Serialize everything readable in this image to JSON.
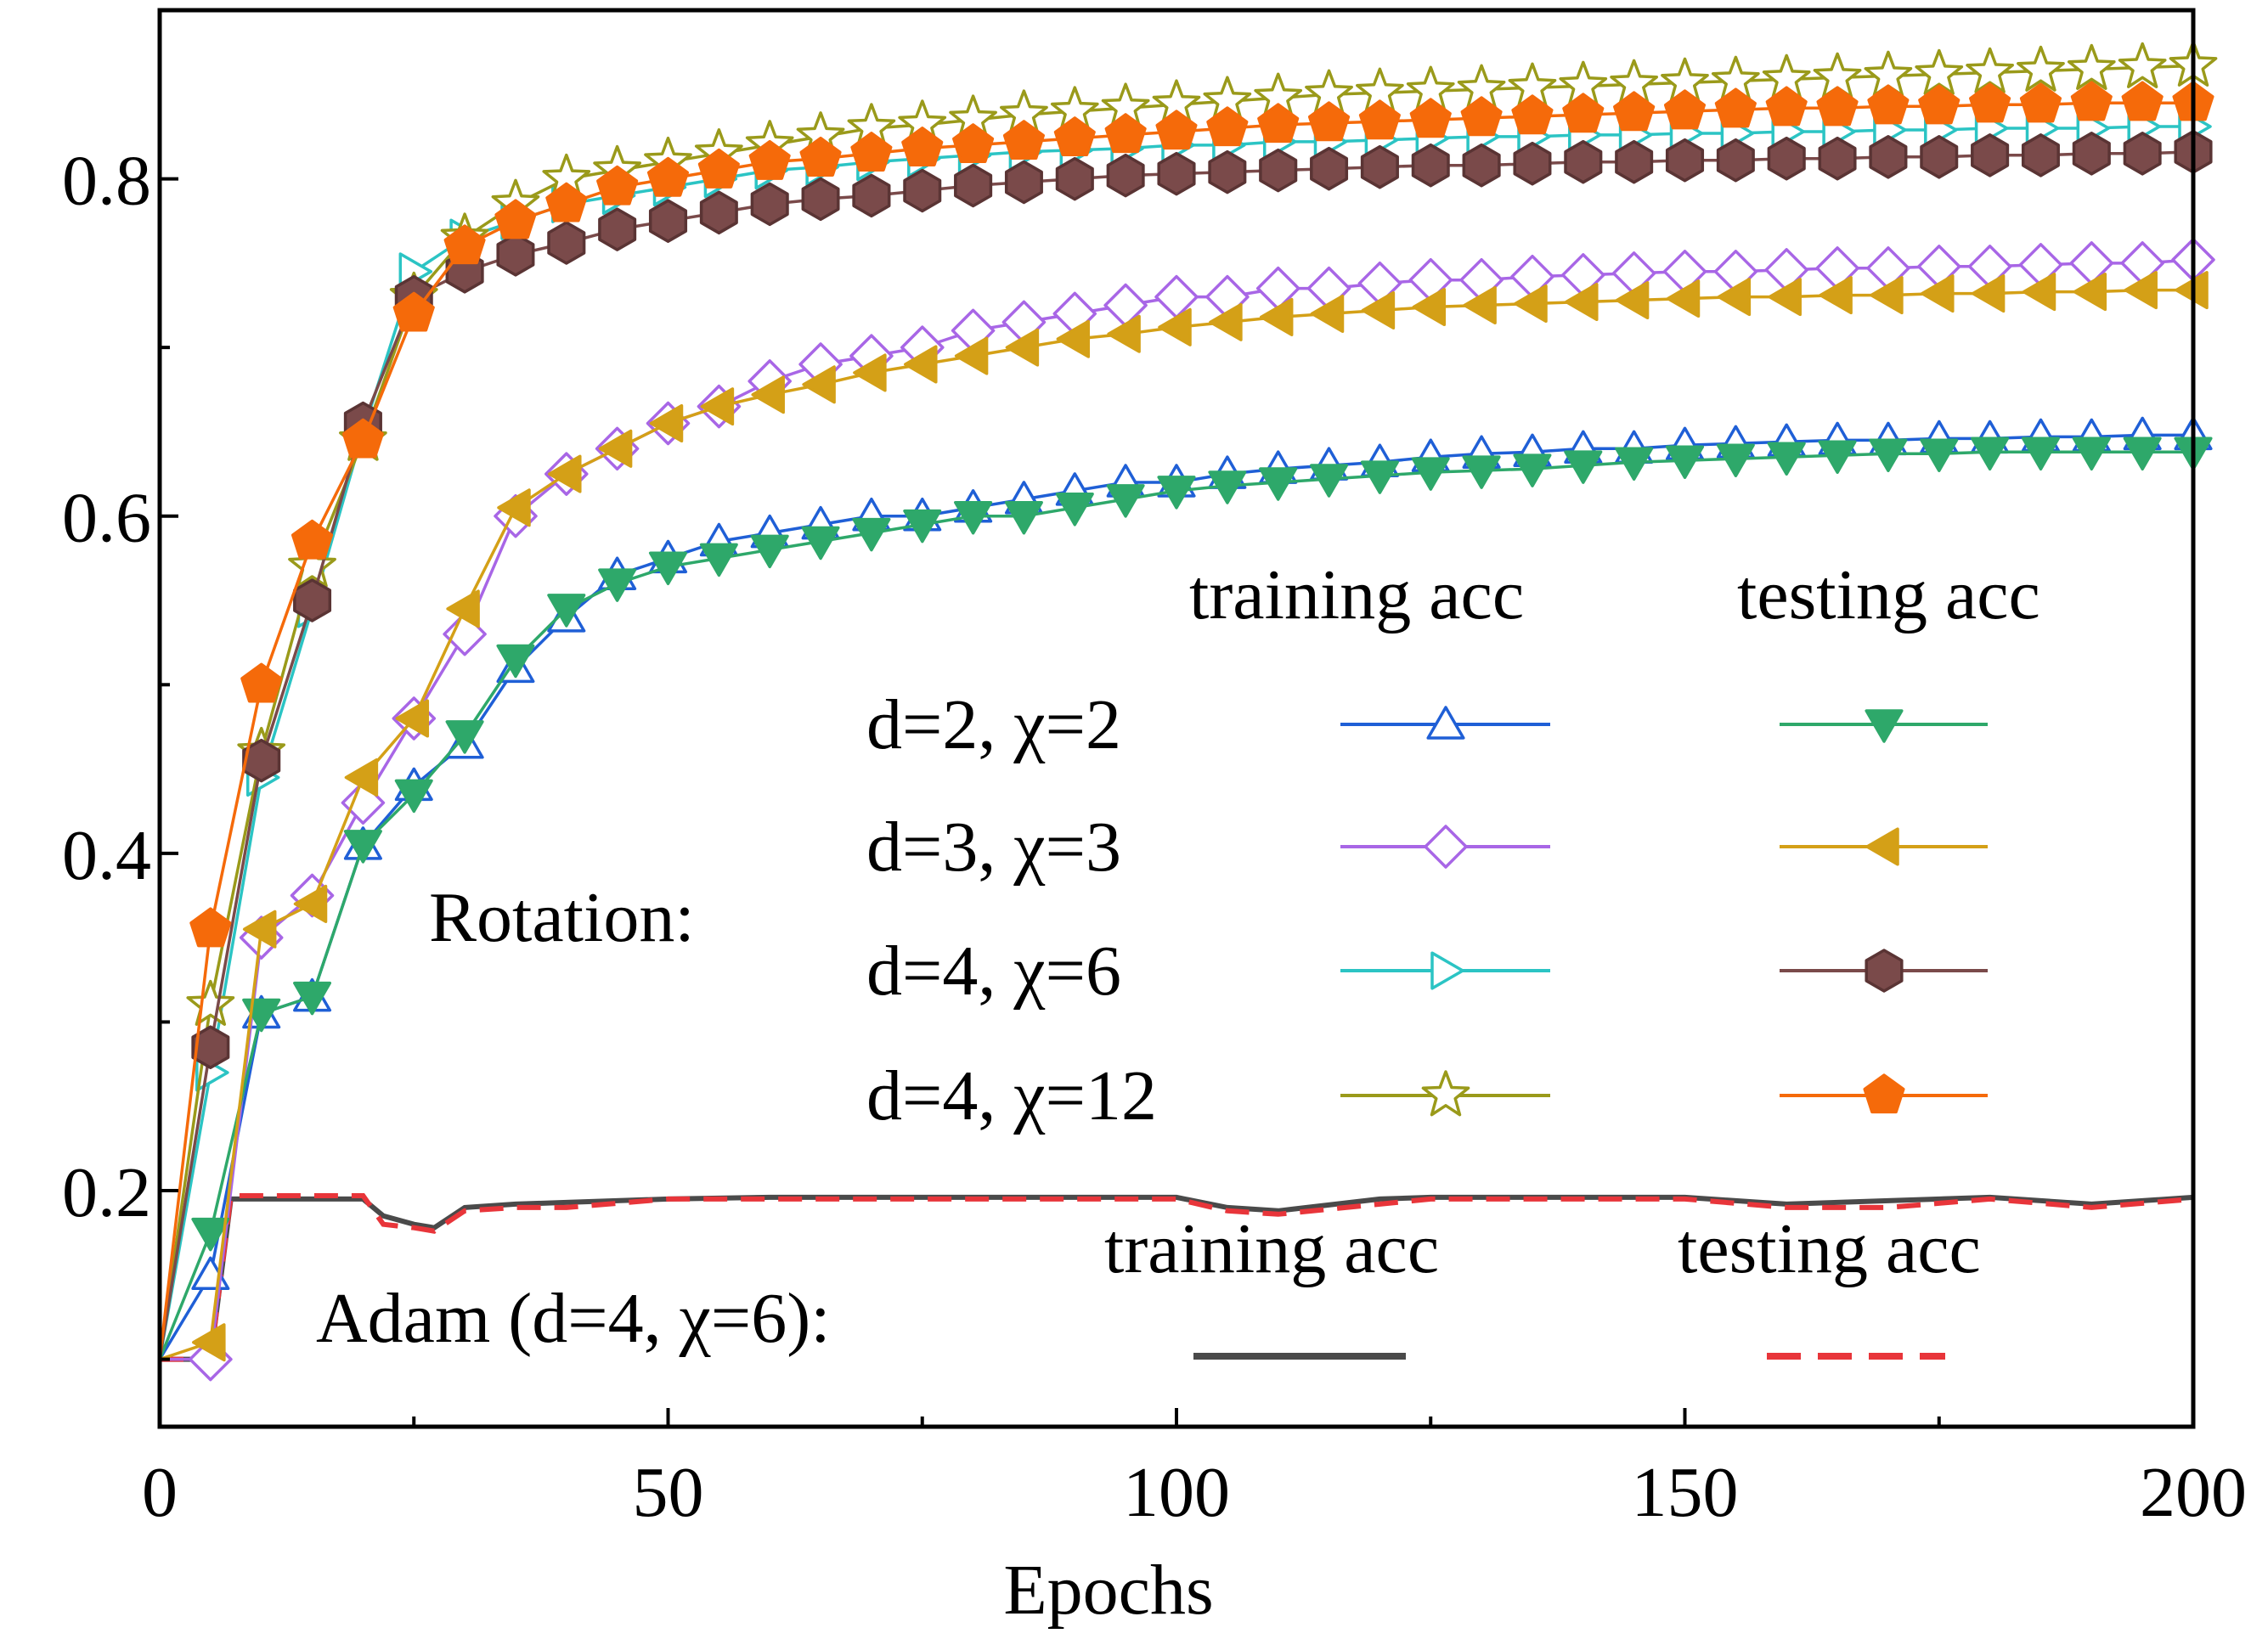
{
  "chart_data": {
    "type": "line",
    "title": "",
    "xlabel": "Epochs",
    "ylabel": "",
    "xlim": [
      0,
      200
    ],
    "ylim": [
      0.06,
      0.9
    ],
    "xticks": [
      0,
      50,
      100,
      150,
      200
    ],
    "yticks": [
      0.2,
      0.4,
      0.6,
      0.8
    ],
    "xtick_labels": [
      "0",
      "50",
      "100",
      "150",
      "200"
    ],
    "ytick_labels": [
      "0.2",
      "0.4",
      "0.6",
      "0.8"
    ],
    "legend": {
      "group_label": "Rotation:",
      "col_headers": [
        "training acc",
        "testing acc"
      ],
      "row_labels": [
        "d=2, χ=2",
        "d=3, χ=3",
        "d=4, χ=6",
        "d=4, χ=12"
      ],
      "adam_label": "Adam (d=4, χ=6):",
      "adam_col_headers": [
        "training acc",
        "testing acc"
      ]
    },
    "x_epochs": [
      5,
      10,
      15,
      20,
      25,
      30,
      35,
      40,
      45,
      50,
      55,
      60,
      65,
      70,
      75,
      80,
      85,
      90,
      95,
      100,
      105,
      110,
      115,
      120,
      125,
      130,
      135,
      140,
      145,
      150,
      155,
      160,
      165,
      170,
      175,
      180,
      185,
      190,
      195,
      200
    ],
    "series": [
      {
        "name": "d=2, χ=2 training acc",
        "color": "#1f5fd6",
        "marker": "triangle-up",
        "filled": false,
        "values": [
          0.15,
          0.305,
          0.315,
          0.405,
          0.44,
          0.465,
          0.51,
          0.54,
          0.565,
          0.575,
          0.585,
          0.59,
          0.595,
          0.6,
          0.6,
          0.605,
          0.61,
          0.615,
          0.62,
          0.62,
          0.625,
          0.628,
          0.63,
          0.632,
          0.635,
          0.637,
          0.638,
          0.64,
          0.64,
          0.642,
          0.643,
          0.644,
          0.645,
          0.645,
          0.646,
          0.646,
          0.647,
          0.647,
          0.648,
          0.648
        ]
      },
      {
        "name": "d=3, χ=3 training acc",
        "color": "#a866e6",
        "marker": "diamond",
        "filled": false,
        "values": [
          0.1,
          0.35,
          0.375,
          0.43,
          0.48,
          0.53,
          0.6,
          0.625,
          0.64,
          0.655,
          0.665,
          0.68,
          0.69,
          0.695,
          0.7,
          0.71,
          0.715,
          0.72,
          0.725,
          0.73,
          0.73,
          0.735,
          0.735,
          0.738,
          0.74,
          0.74,
          0.742,
          0.743,
          0.744,
          0.745,
          0.745,
          0.746,
          0.747,
          0.747,
          0.748,
          0.748,
          0.749,
          0.75,
          0.75,
          0.752
        ]
      },
      {
        "name": "d=4, χ=6 training acc",
        "color": "#2bc4c4",
        "marker": "triangle-right",
        "filled": false,
        "values": [
          0.27,
          0.445,
          0.545,
          0.65,
          0.745,
          0.765,
          0.775,
          0.785,
          0.79,
          0.795,
          0.8,
          0.805,
          0.807,
          0.81,
          0.812,
          0.814,
          0.816,
          0.817,
          0.818,
          0.82,
          0.82,
          0.822,
          0.822,
          0.823,
          0.824,
          0.825,
          0.825,
          0.826,
          0.826,
          0.827,
          0.827,
          0.828,
          0.828,
          0.829,
          0.829,
          0.83,
          0.83,
          0.83,
          0.831,
          0.831
        ]
      },
      {
        "name": "d=4, χ=12 training acc",
        "color": "#9a9a1a",
        "marker": "star",
        "filled": false,
        "values": [
          0.31,
          0.46,
          0.57,
          0.645,
          0.73,
          0.765,
          0.785,
          0.8,
          0.805,
          0.81,
          0.815,
          0.82,
          0.825,
          0.83,
          0.832,
          0.835,
          0.838,
          0.84,
          0.842,
          0.844,
          0.846,
          0.848,
          0.85,
          0.851,
          0.852,
          0.853,
          0.854,
          0.855,
          0.856,
          0.857,
          0.858,
          0.859,
          0.86,
          0.861,
          0.862,
          0.863,
          0.864,
          0.865,
          0.866,
          0.867
        ]
      },
      {
        "name": "d=2, χ=2 testing acc",
        "color": "#2ea86a",
        "marker": "triangle-down",
        "filled": true,
        "values": [
          0.175,
          0.305,
          0.315,
          0.405,
          0.435,
          0.47,
          0.515,
          0.545,
          0.56,
          0.57,
          0.575,
          0.58,
          0.585,
          0.59,
          0.595,
          0.6,
          0.6,
          0.605,
          0.61,
          0.615,
          0.618,
          0.62,
          0.622,
          0.624,
          0.626,
          0.627,
          0.628,
          0.63,
          0.632,
          0.633,
          0.634,
          0.635,
          0.636,
          0.637,
          0.637,
          0.638,
          0.638,
          0.638,
          0.638,
          0.638
        ]
      },
      {
        "name": "d=3, χ=3 testing acc",
        "color": "#d4a017",
        "marker": "triangle-left",
        "filled": true,
        "values": [
          0.11,
          0.355,
          0.37,
          0.445,
          0.48,
          0.545,
          0.605,
          0.625,
          0.64,
          0.655,
          0.665,
          0.672,
          0.678,
          0.685,
          0.69,
          0.695,
          0.7,
          0.705,
          0.708,
          0.712,
          0.715,
          0.718,
          0.72,
          0.722,
          0.724,
          0.725,
          0.726,
          0.727,
          0.728,
          0.729,
          0.73,
          0.73,
          0.731,
          0.731,
          0.732,
          0.732,
          0.733,
          0.733,
          0.734,
          0.734
        ]
      },
      {
        "name": "d=4, χ=6 testing acc",
        "color": "#7a4a4a",
        "marker": "hexagon",
        "filled": true,
        "values": [
          0.285,
          0.455,
          0.55,
          0.655,
          0.73,
          0.745,
          0.755,
          0.762,
          0.77,
          0.775,
          0.78,
          0.785,
          0.788,
          0.79,
          0.793,
          0.796,
          0.798,
          0.8,
          0.802,
          0.803,
          0.804,
          0.805,
          0.806,
          0.807,
          0.808,
          0.808,
          0.809,
          0.81,
          0.81,
          0.811,
          0.811,
          0.812,
          0.812,
          0.813,
          0.813,
          0.814,
          0.814,
          0.815,
          0.815,
          0.816
        ]
      },
      {
        "name": "d=4, χ=12 testing acc",
        "color": "#f56a0a",
        "marker": "pentagon",
        "filled": true,
        "values": [
          0.355,
          0.5,
          0.585,
          0.645,
          0.72,
          0.76,
          0.775,
          0.785,
          0.795,
          0.8,
          0.805,
          0.81,
          0.812,
          0.815,
          0.818,
          0.82,
          0.822,
          0.824,
          0.826,
          0.828,
          0.83,
          0.832,
          0.833,
          0.834,
          0.835,
          0.836,
          0.837,
          0.838,
          0.839,
          0.84,
          0.841,
          0.842,
          0.842,
          0.843,
          0.843,
          0.844,
          0.844,
          0.845,
          0.845,
          0.845
        ]
      }
    ],
    "adam_series": [
      {
        "name": "Adam training acc",
        "color": "#4a4a4a",
        "dash": "solid",
        "x": [
          0,
          5,
          7,
          10,
          20,
          22,
          25,
          27,
          30,
          35,
          40,
          50,
          60,
          70,
          80,
          90,
          100,
          105,
          110,
          120,
          125,
          140,
          150,
          160,
          170,
          180,
          190,
          200
        ],
        "values": [
          0.1,
          0.1,
          0.195,
          0.195,
          0.195,
          0.185,
          0.18,
          0.178,
          0.19,
          0.192,
          0.193,
          0.195,
          0.196,
          0.196,
          0.196,
          0.196,
          0.196,
          0.19,
          0.188,
          0.195,
          0.196,
          0.196,
          0.196,
          0.192,
          0.194,
          0.196,
          0.192,
          0.196
        ]
      },
      {
        "name": "Adam testing acc",
        "color": "#e8353a",
        "dash": "dashed",
        "x": [
          0,
          5,
          7,
          10,
          20,
          22,
          25,
          27,
          30,
          35,
          40,
          50,
          60,
          70,
          80,
          90,
          100,
          105,
          110,
          120,
          125,
          140,
          150,
          160,
          170,
          180,
          190,
          200
        ],
        "values": [
          0.1,
          0.1,
          0.197,
          0.197,
          0.197,
          0.18,
          0.178,
          0.176,
          0.188,
          0.19,
          0.19,
          0.195,
          0.195,
          0.195,
          0.195,
          0.195,
          0.195,
          0.188,
          0.186,
          0.192,
          0.195,
          0.195,
          0.195,
          0.19,
          0.19,
          0.195,
          0.19,
          0.195
        ]
      }
    ]
  }
}
